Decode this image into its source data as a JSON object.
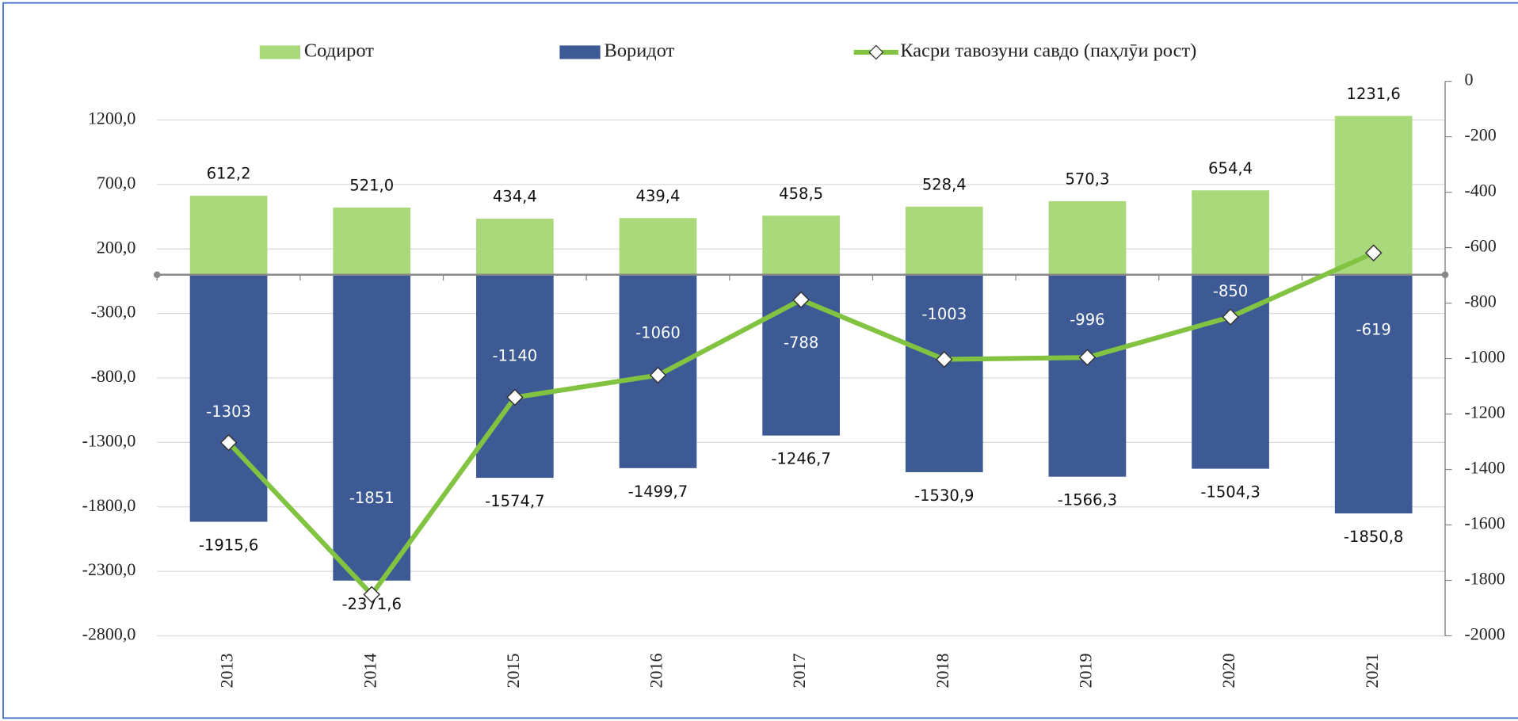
{
  "chart_data": {
    "type": "bar",
    "categories": [
      "2013",
      "2014",
      "2015",
      "2016",
      "2017",
      "2018",
      "2019",
      "2020",
      "2021"
    ],
    "series": [
      {
        "name": "Содирот",
        "type": "bar",
        "color": "#a9d97a",
        "values": [
          612.2,
          521.0,
          434.4,
          439.4,
          458.5,
          528.4,
          570.3,
          654.4,
          1231.6
        ],
        "value_labels": [
          "612,2",
          "521,0",
          "434,4",
          "439,4",
          "458,5",
          "528,4",
          "570,3",
          "654,4",
          "1231,6"
        ]
      },
      {
        "name": "Воридот",
        "type": "bar",
        "color": "#3d5a94",
        "values": [
          -1915.6,
          -2371.6,
          -1574.7,
          -1499.7,
          -1246.7,
          -1530.9,
          -1566.3,
          -1504.3,
          -1850.8
        ],
        "value_labels": [
          "-1915,6",
          "-2371,6",
          "-1574,7",
          "-1499,7",
          "-1246,7",
          "-1530,9",
          "-1566,3",
          "-1504,3",
          "-1850,8"
        ]
      },
      {
        "name": "Касри тавозуни савдо (паҳлӯи рост)",
        "type": "line",
        "axis": "y2",
        "color": "#82c341",
        "values": [
          -1303,
          -1851,
          -1140,
          -1060,
          -788,
          -1003,
          -996,
          -850,
          -619
        ]
      }
    ],
    "ylim": [
      -2800,
      1500
    ],
    "yticks": [
      {
        "value": 1200,
        "label": "1200,0"
      },
      {
        "value": 700,
        "label": "700,0"
      },
      {
        "value": 200,
        "label": "200,0"
      },
      {
        "value": -300,
        "label": "-300,0"
      },
      {
        "value": -800,
        "label": "-800,0"
      },
      {
        "value": -1300,
        "label": "-1300,0"
      },
      {
        "value": -1800,
        "label": "-1800,0"
      },
      {
        "value": -2300,
        "label": "-2300,0"
      },
      {
        "value": -2800,
        "label": "-2800,0"
      }
    ],
    "y2lim": [
      -2000,
      0
    ],
    "y2ticks": [
      0,
      -200,
      -400,
      -600,
      -800,
      -1000,
      -1200,
      -1400,
      -1600,
      -1800,
      -2000
    ],
    "grid": true,
    "legend": "top"
  }
}
